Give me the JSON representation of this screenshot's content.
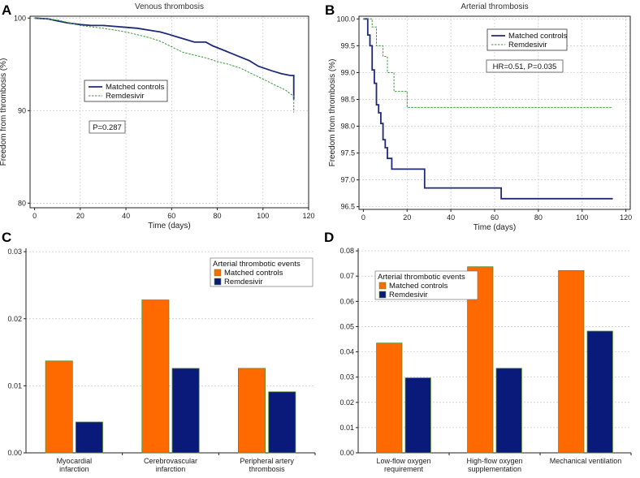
{
  "figure": {
    "letters": [
      "A",
      "B",
      "C",
      "D"
    ]
  },
  "colors": {
    "navy": "#1f2a78",
    "green": "#3a9a3a",
    "orange": "#ff6a00",
    "barnavy": "#0a1a7a",
    "barborder": "#5a8a2a"
  },
  "chart_data": [
    {
      "id": "A",
      "type": "line",
      "title": "Venous thrombosis",
      "xlabel": "Time (days)",
      "ylabel": "Freedom from thrombosis (%)",
      "xlim": [
        -2,
        120
      ],
      "ylim": [
        79.5,
        100.2
      ],
      "xticks": [
        0,
        20,
        40,
        60,
        80,
        100,
        120
      ],
      "yticks": [
        80,
        90,
        100
      ],
      "legend": [
        "Matched controls",
        "Remdesivir"
      ],
      "annotation": "P=0.287",
      "series": [
        {
          "name": "Matched controls",
          "style": "solid",
          "points": [
            [
              0,
              100
            ],
            [
              6,
              99.9
            ],
            [
              10,
              99.7
            ],
            [
              14,
              99.5
            ],
            [
              20,
              99.3
            ],
            [
              25,
              99.2
            ],
            [
              30,
              99.2
            ],
            [
              35,
              99.1
            ],
            [
              40,
              99.0
            ],
            [
              45,
              98.9
            ],
            [
              50,
              98.7
            ],
            [
              55,
              98.5
            ],
            [
              58,
              98.3
            ],
            [
              62,
              98.0
            ],
            [
              66,
              97.7
            ],
            [
              70,
              97.4
            ],
            [
              75,
              97.4
            ],
            [
              78,
              97.0
            ],
            [
              82,
              96.6
            ],
            [
              86,
              96.2
            ],
            [
              90,
              95.8
            ],
            [
              94,
              95.4
            ],
            [
              98,
              94.8
            ],
            [
              104,
              94.3
            ],
            [
              108,
              94.0
            ],
            [
              112,
              93.8
            ],
            [
              113.5,
              93.8
            ],
            [
              113.5,
              91.2
            ]
          ]
        },
        {
          "name": "Remdesivir",
          "style": "dashed",
          "points": [
            [
              0,
              100
            ],
            [
              10,
              99.8
            ],
            [
              20,
              99.2
            ],
            [
              30,
              98.9
            ],
            [
              40,
              98.5
            ],
            [
              50,
              97.9
            ],
            [
              55,
              97.5
            ],
            [
              60,
              96.9
            ],
            [
              65,
              96.3
            ],
            [
              70,
              96.0
            ],
            [
              75,
              95.7
            ],
            [
              80,
              95.3
            ],
            [
              85,
              95.0
            ],
            [
              90,
              94.6
            ],
            [
              95,
              94.0
            ],
            [
              100,
              93.4
            ],
            [
              105,
              92.8
            ],
            [
              110,
              92.2
            ],
            [
              112,
              91.8
            ],
            [
              113.5,
              91.6
            ],
            [
              113.5,
              89.8
            ]
          ]
        }
      ]
    },
    {
      "id": "B",
      "type": "line",
      "title": "Arterial thrombosis",
      "xlabel": "Time (days)",
      "ylabel": "Freedom from thrombosis (%)",
      "xlim": [
        -2,
        122
      ],
      "ylim": [
        96.45,
        100.05
      ],
      "xticks": [
        0,
        20,
        40,
        60,
        80,
        100,
        120
      ],
      "yticks": [
        96.5,
        97.0,
        97.5,
        98.0,
        98.5,
        99.0,
        99.5,
        100.0
      ],
      "yticklabels": [
        "96.5",
        "97.0",
        "97.5",
        "98.0",
        "98.5",
        "99.0",
        "99.5",
        "100.0"
      ],
      "legend": [
        "Matched controls",
        "Remdesivir"
      ],
      "annotation": "HR=0.51, P=0.035",
      "series": [
        {
          "name": "Matched controls",
          "style": "solid",
          "points": [
            [
              0,
              100
            ],
            [
              2,
              100
            ],
            [
              2,
              99.7
            ],
            [
              3,
              99.7
            ],
            [
              3,
              99.5
            ],
            [
              4,
              99.5
            ],
            [
              4,
              99.05
            ],
            [
              5,
              99.05
            ],
            [
              5,
              98.8
            ],
            [
              6,
              98.8
            ],
            [
              6,
              98.4
            ],
            [
              7,
              98.4
            ],
            [
              7,
              98.25
            ],
            [
              8,
              98.25
            ],
            [
              8,
              98.05
            ],
            [
              9,
              98.05
            ],
            [
              9,
              97.75
            ],
            [
              10,
              97.75
            ],
            [
              10,
              97.6
            ],
            [
              11,
              97.6
            ],
            [
              11,
              97.4
            ],
            [
              13,
              97.4
            ],
            [
              13,
              97.2
            ],
            [
              28,
              97.2
            ],
            [
              28,
              96.85
            ],
            [
              63,
              96.85
            ],
            [
              63,
              96.65
            ],
            [
              114,
              96.65
            ]
          ]
        },
        {
          "name": "Remdesivir",
          "style": "dashed",
          "points": [
            [
              0,
              100
            ],
            [
              4,
              100
            ],
            [
              4,
              99.85
            ],
            [
              6,
              99.85
            ],
            [
              6,
              99.5
            ],
            [
              9,
              99.5
            ],
            [
              9,
              99.3
            ],
            [
              11,
              99.3
            ],
            [
              11,
              99.0
            ],
            [
              14,
              99.0
            ],
            [
              14,
              98.65
            ],
            [
              20,
              98.65
            ],
            [
              20,
              98.35
            ],
            [
              114,
              98.35
            ]
          ]
        }
      ]
    },
    {
      "id": "C",
      "type": "bar",
      "categories": [
        [
          "Myocardial",
          "infarction"
        ],
        [
          "Cerebrovascular",
          "infarction"
        ],
        [
          "Peripheral artery",
          "thrombosis"
        ]
      ],
      "series": [
        {
          "name": "Matched controls",
          "values": [
            0.0137,
            0.0228,
            0.0126
          ]
        },
        {
          "name": "Remdesivir",
          "values": [
            0.0046,
            0.0126,
            0.0091
          ]
        }
      ],
      "ylim": [
        0,
        0.0305
      ],
      "yticks": [
        0.0,
        0.01,
        0.02,
        0.03
      ],
      "yticklabels": [
        "0.00",
        "0.01",
        "0.02",
        "0.03"
      ],
      "legend_title": "Arterial thrombotic events",
      "legend": [
        "Matched controls",
        "Remdesivir"
      ]
    },
    {
      "id": "D",
      "type": "bar",
      "categories": [
        [
          "Low-flow oxygen",
          "requirement"
        ],
        [
          "High-flow oxygen",
          "supplementation"
        ],
        [
          "Mechanical ventilation"
        ]
      ],
      "series": [
        {
          "name": "Matched controls",
          "values": [
            0.0435,
            0.0737,
            0.0722
          ]
        },
        {
          "name": "Remdesivir",
          "values": [
            0.0297,
            0.0335,
            0.0482
          ]
        }
      ],
      "ylim": [
        0,
        0.081
      ],
      "yticks": [
        0.0,
        0.01,
        0.02,
        0.03,
        0.04,
        0.05,
        0.06,
        0.07,
        0.08
      ],
      "yticklabels": [
        "0.00",
        "0.01",
        "0.02",
        "0.03",
        "0.04",
        "0.05",
        "0.06",
        "0.07",
        "0.08"
      ],
      "legend_title": "Arterial thrombotic events",
      "legend": [
        "Matched controls",
        "Remdesivir"
      ]
    }
  ]
}
